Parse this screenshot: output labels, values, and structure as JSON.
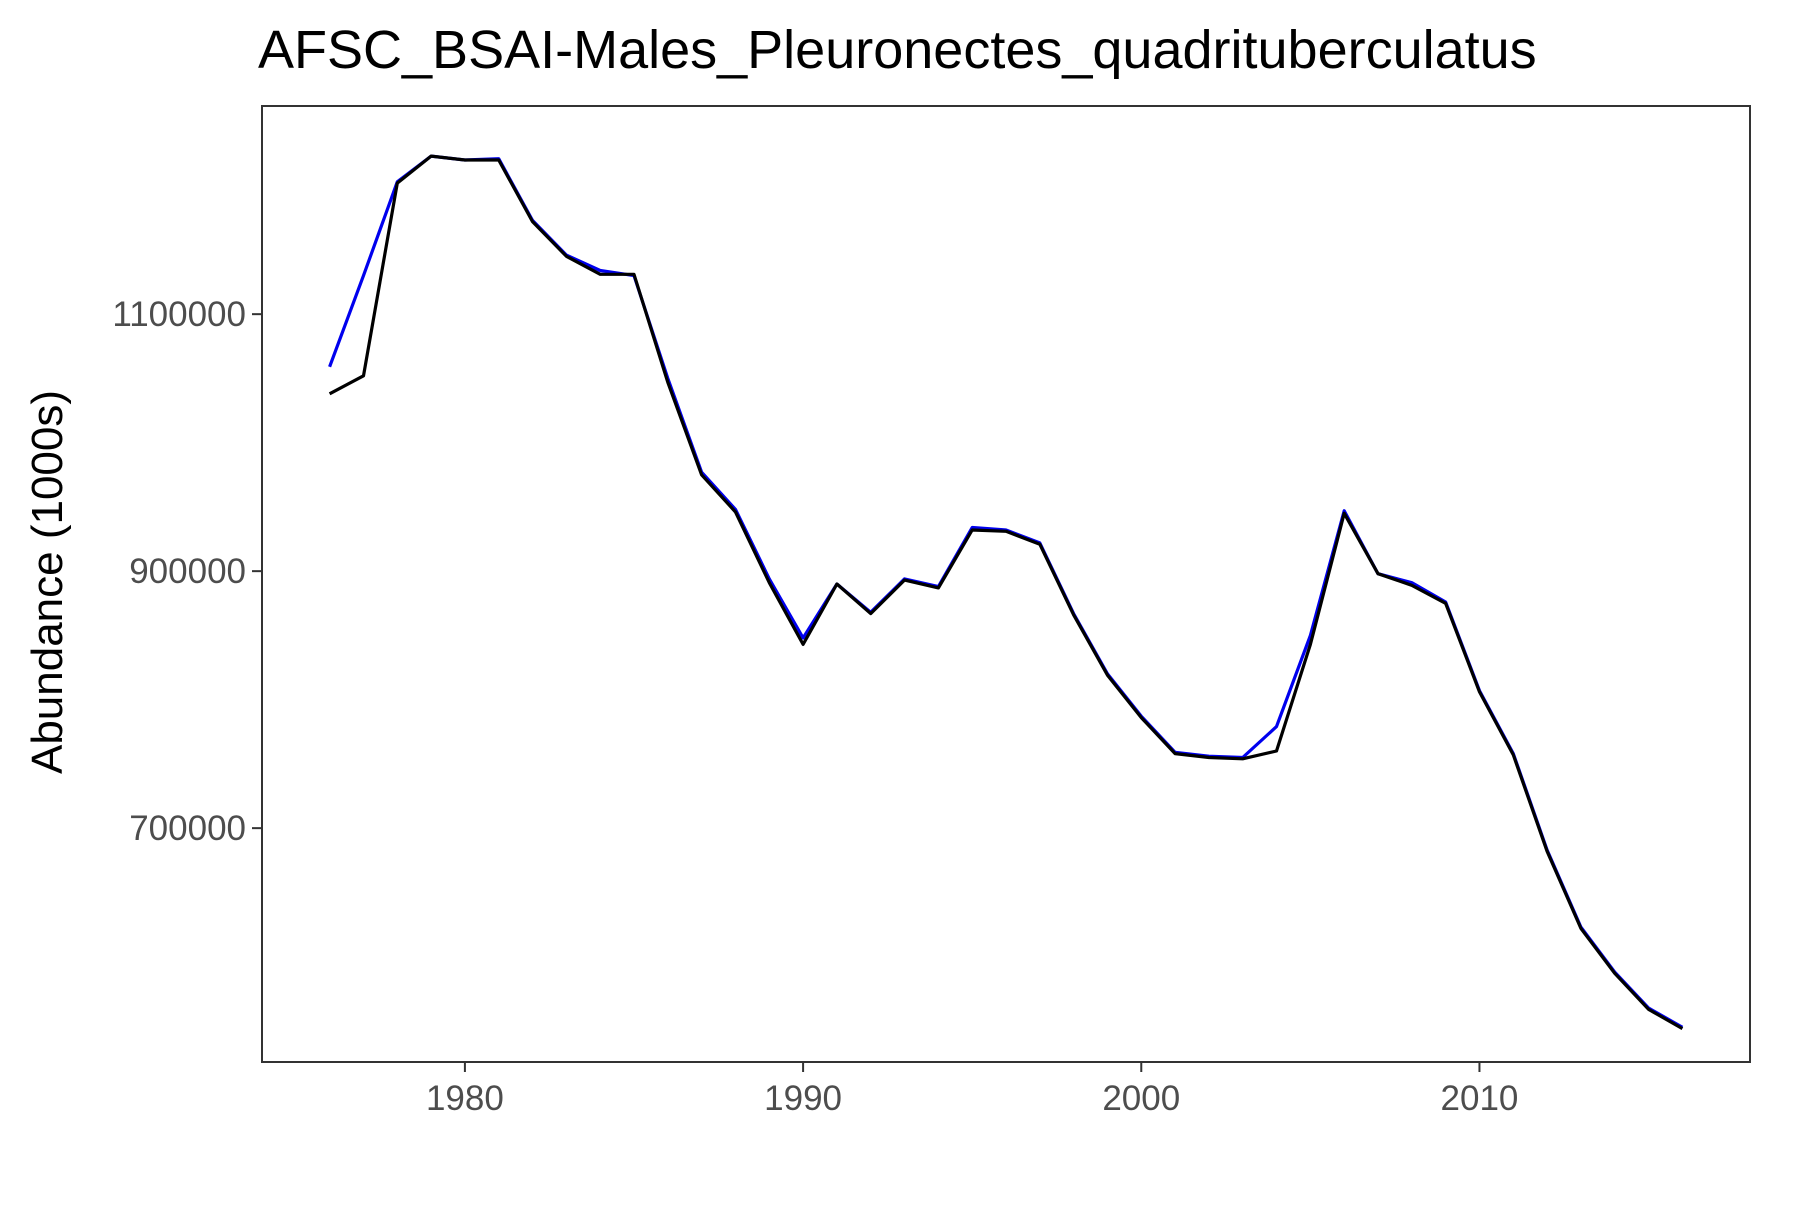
{
  "chart_data": {
    "type": "line",
    "title": "AFSC_BSAI-Males_Pleuronectes_quadrituberculatus",
    "xlabel": "",
    "ylabel": "Abundance (1000s)",
    "xlim": [
      1974,
      2018
    ],
    "ylim": [
      518000,
      1262000
    ],
    "x_ticks": [
      1980,
      1990,
      2000,
      2010
    ],
    "y_ticks": [
      700000,
      900000,
      1100000
    ],
    "x_tick_labels": [
      "1980",
      "1990",
      "2000",
      "2010"
    ],
    "y_tick_labels": [
      "700000",
      "900000",
      "1100000"
    ],
    "grid": false,
    "legend": "none",
    "x": [
      1976,
      1977,
      1978,
      1979,
      1980,
      1981,
      1982,
      1983,
      1984,
      1985,
      1986,
      1987,
      1988,
      1989,
      1990,
      1991,
      1992,
      1993,
      1994,
      1995,
      1996,
      1997,
      1998,
      1999,
      2000,
      2001,
      2002,
      2003,
      2004,
      2005,
      2006,
      2007,
      2008,
      2009,
      2010,
      2011,
      2012,
      2013,
      2014,
      2015,
      2016
    ],
    "series": [
      {
        "color": "#0000ee",
        "values": [
          1059000,
          1130000,
          1203000,
          1223000,
          1220000,
          1221000,
          1173000,
          1146000,
          1134000,
          1130000,
          1050000,
          977000,
          948000,
          894000,
          848000,
          890000,
          868000,
          894000,
          888000,
          934000,
          932000,
          922000,
          867000,
          820000,
          787000,
          759000,
          756000,
          755000,
          779000,
          850000,
          947000,
          898000,
          891000,
          876000,
          807000,
          758000,
          683000,
          623000,
          588000,
          560000,
          545000
        ]
      },
      {
        "color": "#000000",
        "values": [
          1038000,
          1052000,
          1202000,
          1223000,
          1220000,
          1220000,
          1172000,
          1145000,
          1131000,
          1131000,
          1047000,
          975000,
          946000,
          891000,
          843000,
          890000,
          867000,
          893000,
          887000,
          932000,
          931000,
          921000,
          866000,
          819000,
          786000,
          758000,
          755000,
          754000,
          760000,
          843000,
          945000,
          898000,
          889000,
          875000,
          806000,
          757000,
          682000,
          622000,
          587000,
          559000,
          544000
        ]
      }
    ],
    "colors": {
      "panel_border": "#333333",
      "axis_text": "#4d4d4d",
      "title_text": "#000000",
      "background": "#ffffff"
    }
  }
}
